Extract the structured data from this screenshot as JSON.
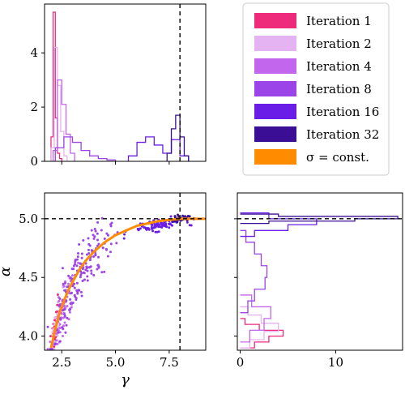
{
  "chart_data": [
    {
      "id": "hist-gamma",
      "type": "histogram",
      "xlim": [
        1.7,
        9.2
      ],
      "ylim": [
        0,
        5.8
      ],
      "yticks": [
        0,
        2,
        4
      ],
      "reference_line": {
        "axis": "x",
        "value": 8.0,
        "style": "dashed"
      },
      "series": [
        {
          "name": "Iteration 1",
          "bins": [
            2.0,
            2.1,
            2.2,
            2.3,
            2.4,
            2.5
          ],
          "counts": [
            0.9,
            5.5,
            1.6,
            0.3,
            0.1
          ]
        },
        {
          "name": "Iteration 2",
          "bins": [
            2.0,
            2.15,
            2.3,
            2.45,
            2.6,
            2.75
          ],
          "counts": [
            0.5,
            4.2,
            2.8,
            1.1,
            0.2
          ]
        },
        {
          "name": "Iteration 4",
          "bins": [
            2.1,
            2.3,
            2.5,
            2.7,
            2.9,
            3.1
          ],
          "counts": [
            0.4,
            3.0,
            2.1,
            1.0,
            0.3
          ]
        },
        {
          "name": "Iteration 8",
          "bins": [
            2.2,
            2.6,
            3.0,
            3.4,
            3.8,
            4.2,
            4.6,
            5.0
          ],
          "counts": [
            0.5,
            0.9,
            0.7,
            0.4,
            0.2,
            0.1,
            0.05
          ]
        },
        {
          "name": "Iteration 16",
          "bins": [
            5.6,
            6.0,
            6.4,
            6.8,
            7.2,
            7.6,
            8.0,
            8.4
          ],
          "counts": [
            0.2,
            0.7,
            0.9,
            0.6,
            0.3,
            0.8,
            0.2
          ]
        },
        {
          "name": "Iteration 32",
          "bins": [
            7.4,
            7.6,
            7.8,
            8.0,
            8.2,
            8.4
          ],
          "counts": [
            0.3,
            1.2,
            1.7,
            0.9,
            0.2
          ]
        }
      ]
    },
    {
      "id": "scatter-main",
      "type": "scatter",
      "xlabel": "γ",
      "ylabel": "α",
      "xlim": [
        1.7,
        9.2
      ],
      "ylim": [
        3.88,
        5.22
      ],
      "xticks": [
        2.5,
        5.0,
        7.5
      ],
      "yticks": [
        4.0,
        4.5,
        5.0
      ],
      "reference_lines": [
        {
          "axis": "x",
          "value": 8.0,
          "style": "dashed"
        },
        {
          "axis": "y",
          "value": 5.0,
          "style": "dashed"
        }
      ],
      "curve": {
        "name": "σ = const.",
        "x": [
          2.0,
          2.2,
          2.4,
          2.6,
          2.8,
          3.0,
          3.3,
          3.6,
          4.0,
          4.5,
          5.0,
          5.5,
          6.0,
          6.5,
          7.0,
          7.5,
          8.0,
          8.5,
          9.2
        ],
        "y": [
          3.9,
          4.06,
          4.2,
          4.3,
          4.39,
          4.46,
          4.56,
          4.64,
          4.72,
          4.8,
          4.86,
          4.9,
          4.94,
          4.96,
          4.98,
          4.99,
          5.0,
          5.0,
          5.0
        ]
      },
      "series": [
        {
          "name": "Iteration 1",
          "center": [
            2.2,
            4.05
          ],
          "spread": [
            0.12,
            0.12
          ],
          "n": 40
        },
        {
          "name": "Iteration 2",
          "center": [
            2.35,
            4.1
          ],
          "spread": [
            0.15,
            0.14
          ],
          "n": 50
        },
        {
          "name": "Iteration 4",
          "center": [
            2.6,
            4.2
          ],
          "spread": [
            0.25,
            0.18
          ],
          "n": 70
        },
        {
          "name": "Iteration 8",
          "center": [
            3.4,
            4.55
          ],
          "spread": [
            0.7,
            0.2
          ],
          "n": 170
        },
        {
          "name": "Iteration 16",
          "center": [
            6.9,
            4.92
          ],
          "spread": [
            0.6,
            0.04
          ],
          "n": 90
        },
        {
          "name": "Iteration 32",
          "center": [
            8.0,
            5.0
          ],
          "spread": [
            0.25,
            0.02
          ],
          "n": 70
        }
      ]
    },
    {
      "id": "hist-alpha",
      "type": "histogram",
      "orientation": "horizontal",
      "xlim": [
        -0.3,
        17
      ],
      "ylim": [
        3.88,
        5.22
      ],
      "xticks": [
        0,
        10
      ],
      "reference_line": {
        "axis": "y",
        "value": 5.0,
        "style": "dashed"
      },
      "series": [
        {
          "name": "Iteration 1",
          "bins": [
            3.9,
            3.95,
            4.0,
            4.05,
            4.1,
            4.15
          ],
          "counts": [
            1.5,
            3.0,
            4.5,
            2.0,
            0.5
          ]
        },
        {
          "name": "Iteration 2",
          "bins": [
            3.9,
            3.97,
            4.04,
            4.11,
            4.18,
            4.25
          ],
          "counts": [
            1.0,
            2.5,
            4.0,
            2.2,
            0.8
          ]
        },
        {
          "name": "Iteration 4",
          "bins": [
            3.95,
            4.05,
            4.15,
            4.25,
            4.35
          ],
          "counts": [
            1.0,
            2.5,
            3.2,
            1.2
          ]
        },
        {
          "name": "Iteration 8",
          "bins": [
            4.2,
            4.3,
            4.4,
            4.5,
            4.6,
            4.7,
            4.8,
            4.9
          ],
          "counts": [
            0.8,
            1.5,
            2.6,
            2.8,
            2.2,
            1.5,
            0.6
          ]
        },
        {
          "name": "Iteration 16",
          "bins": [
            4.85,
            4.9,
            4.95,
            5.0,
            5.05
          ],
          "counts": [
            1.5,
            5.0,
            8.0,
            3.0
          ]
        },
        {
          "name": "Iteration 32",
          "bins": [
            4.96,
            4.98,
            5.0,
            5.02,
            5.04
          ],
          "counts": [
            3.0,
            12.0,
            16.5,
            4.0
          ]
        }
      ]
    }
  ],
  "legend": {
    "placement": "top-right",
    "entries": [
      {
        "label": "Iteration 1",
        "color": "#ee2a7b"
      },
      {
        "label": "Iteration 2",
        "color": "#e5b3f2"
      },
      {
        "label": "Iteration 4",
        "color": "#c266ee"
      },
      {
        "label": "Iteration 8",
        "color": "#9b44e8"
      },
      {
        "label": "Iteration 16",
        "color": "#6a1de6"
      },
      {
        "label": "Iteration 32",
        "color": "#3a0f96"
      },
      {
        "label": "σ = const.",
        "color": "#ff8c00"
      }
    ]
  }
}
